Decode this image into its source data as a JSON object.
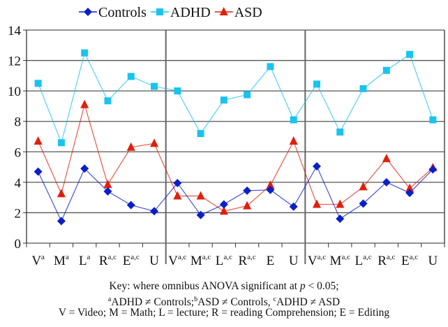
{
  "chart_data": {
    "type": "line",
    "categories": [
      {
        "base": "V",
        "sup": "a"
      },
      {
        "base": "M",
        "sup": "a"
      },
      {
        "base": "L",
        "sup": "a"
      },
      {
        "base": "R",
        "sup": "a,c"
      },
      {
        "base": "E",
        "sup": "a,c"
      },
      {
        "base": "U",
        "sup": ""
      },
      {
        "base": "V",
        "sup": "a,c"
      },
      {
        "base": "M",
        "sup": "a,c"
      },
      {
        "base": "L",
        "sup": "a,c"
      },
      {
        "base": "R",
        "sup": "a,c"
      },
      {
        "base": "E",
        "sup": ""
      },
      {
        "base": "U",
        "sup": ""
      },
      {
        "base": "V",
        "sup": "a,c"
      },
      {
        "base": "M",
        "sup": "a,c"
      },
      {
        "base": "L",
        "sup": "a,c"
      },
      {
        "base": "R",
        "sup": "a,c"
      },
      {
        "base": "E",
        "sup": "a,c"
      },
      {
        "base": "U",
        "sup": ""
      }
    ],
    "ylim": [
      0,
      14
    ],
    "yticks": [
      0,
      2,
      4,
      6,
      8,
      10,
      12,
      14
    ],
    "grid": true,
    "legend": "top",
    "group_dividers_after": [
      6,
      12
    ],
    "series": [
      {
        "name": "Controls",
        "color": "#0a1fc8",
        "marker": "diamond",
        "values": [
          4.7,
          1.45,
          4.9,
          3.4,
          2.5,
          2.1,
          3.95,
          1.85,
          2.55,
          3.45,
          3.5,
          2.4,
          5.05,
          1.6,
          2.6,
          4.0,
          3.3,
          4.85
        ]
      },
      {
        "name": "ADHD",
        "color": "#19c3f0",
        "marker": "square",
        "values": [
          10.5,
          6.6,
          12.5,
          9.35,
          10.95,
          10.3,
          10.0,
          7.2,
          9.4,
          9.75,
          11.6,
          8.1,
          10.45,
          7.3,
          10.15,
          11.35,
          12.4,
          8.1
        ]
      },
      {
        "name": "ASD",
        "color": "#e0200f",
        "marker": "triangle",
        "values": [
          6.7,
          3.25,
          9.1,
          3.85,
          6.3,
          6.55,
          3.1,
          3.1,
          2.1,
          2.45,
          3.8,
          6.7,
          2.55,
          2.55,
          3.7,
          5.55,
          3.6,
          4.95
        ]
      }
    ]
  },
  "key": {
    "line1_pre": "Key: where omnibus ANOVA significant at ",
    "line1_p": "p",
    "line1_post": " < 0.05;",
    "line2": [
      {
        "sup": "a",
        "text": "ADHD ≠ Controls;"
      },
      {
        "sup": "b",
        "text": "ASD ≠ Controls, "
      },
      {
        "sup": "c",
        "text": "ADHD ≠ ASD"
      }
    ],
    "line3": "V = Video; M = Math; L = lecture; R = reading Comprehension; E = Editing"
  }
}
